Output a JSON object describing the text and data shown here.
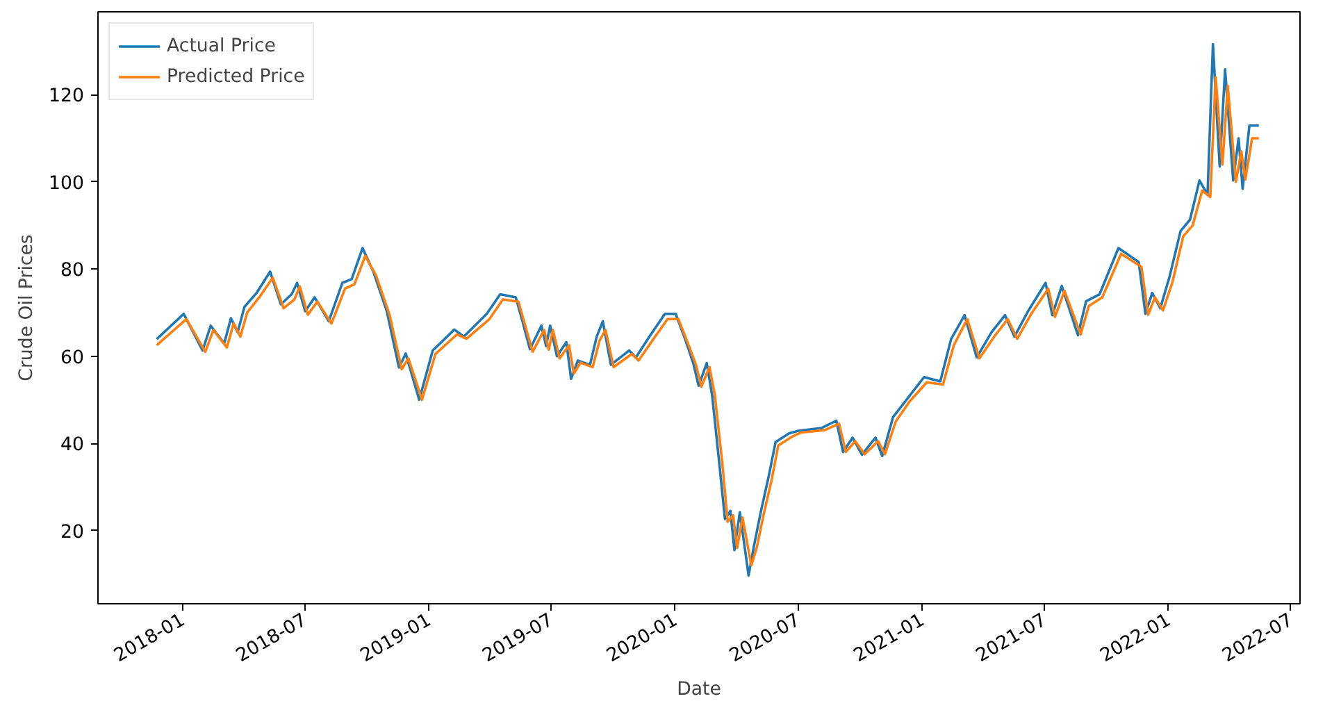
{
  "chart_data": {
    "type": "line",
    "xlabel": "Date",
    "ylabel": "Crude Oil Prices",
    "xlim": [
      "2017-08-29",
      "2022-07-15"
    ],
    "ylim": [
      3.2,
      139
    ],
    "xticks": [
      "2018-01",
      "2018-07",
      "2019-01",
      "2019-07",
      "2020-01",
      "2020-07",
      "2021-01",
      "2021-07",
      "2022-01",
      "2022-07"
    ],
    "yticks": [
      20,
      40,
      60,
      80,
      100,
      120
    ],
    "grid": false,
    "legend": "top left",
    "line_style": "solid",
    "series": [
      {
        "name": "Actual Price",
        "color": "#1f77b4",
        "x": [
          "2017-11-24",
          "2018-01-03",
          "2018-01-31",
          "2018-02-12",
          "2018-03-04",
          "2018-03-14",
          "2018-03-24",
          "2018-04-03",
          "2018-04-21",
          "2018-05-11",
          "2018-05-27",
          "2018-06-12",
          "2018-06-20",
          "2018-07-02",
          "2018-07-16",
          "2018-08-06",
          "2018-08-26",
          "2018-09-09",
          "2018-09-25",
          "2018-10-11",
          "2018-10-31",
          "2018-11-18",
          "2018-11-28",
          "2018-12-18",
          "2019-01-07",
          "2019-02-08",
          "2019-02-22",
          "2019-03-28",
          "2019-04-17",
          "2019-05-10",
          "2019-05-20",
          "2019-05-31",
          "2019-06-17",
          "2019-06-24",
          "2019-06-30",
          "2019-07-10",
          "2019-07-24",
          "2019-07-31",
          "2019-08-10",
          "2019-08-28",
          "2019-09-07",
          "2019-09-16",
          "2019-09-28",
          "2019-10-25",
          "2019-11-04",
          "2019-11-24",
          "2019-12-17",
          "2020-01-02",
          "2020-01-16",
          "2020-01-28",
          "2020-02-05",
          "2020-02-17",
          "2020-02-25",
          "2020-03-07",
          "2020-03-15",
          "2020-03-23",
          "2020-03-29",
          "2020-04-06",
          "2020-04-19",
          "2020-04-27",
          "2020-05-07",
          "2020-05-19",
          "2020-05-29",
          "2020-06-18",
          "2020-07-02",
          "2020-08-05",
          "2020-08-27",
          "2020-09-06",
          "2020-09-20",
          "2020-10-04",
          "2020-10-24",
          "2020-11-03",
          "2020-11-19",
          "2020-12-09",
          "2021-01-04",
          "2021-01-28",
          "2021-02-13",
          "2021-03-05",
          "2021-03-23",
          "2021-04-14",
          "2021-05-04",
          "2021-05-18",
          "2021-06-07",
          "2021-07-03",
          "2021-07-13",
          "2021-07-27",
          "2021-08-20",
          "2021-09-01",
          "2021-09-21",
          "2021-10-19",
          "2021-11-18",
          "2021-11-28",
          "2021-12-08",
          "2021-12-20",
          "2022-01-03",
          "2022-01-19",
          "2022-02-02",
          "2022-02-16",
          "2022-02-28",
          "2022-03-08",
          "2022-03-18",
          "2022-03-26",
          "2022-04-07",
          "2022-04-15",
          "2022-04-21",
          "2022-05-01",
          "2022-05-15"
        ],
        "values": [
          63.9,
          69.7,
          61.3,
          67,
          62.9,
          68.7,
          65.5,
          71.3,
          74.5,
          79.4,
          71.9,
          74.2,
          76.8,
          70.3,
          73.5,
          68,
          76.8,
          77.7,
          84.8,
          79.4,
          70.3,
          57.4,
          60.6,
          50,
          61.3,
          66.1,
          64.5,
          69.7,
          74.2,
          73.5,
          68,
          61.6,
          67,
          62.3,
          67,
          60,
          63.2,
          54.8,
          59,
          58,
          64.5,
          68,
          58,
          61.3,
          59.7,
          64.5,
          69.7,
          69.7,
          63.9,
          58.4,
          53.2,
          58.4,
          51,
          34.8,
          22.6,
          24.5,
          15.5,
          24.2,
          9.7,
          16.5,
          24.2,
          32.6,
          40.3,
          42.3,
          42.9,
          43.5,
          45.2,
          38,
          41.3,
          37.4,
          41.3,
          37.1,
          46,
          50,
          55.2,
          54.2,
          63.9,
          69.4,
          59.7,
          65.5,
          69.4,
          64.5,
          70.3,
          76.8,
          69.4,
          76.1,
          64.8,
          72.6,
          74.2,
          84.8,
          81.6,
          69.7,
          74.5,
          71,
          78.4,
          88.7,
          91.3,
          100.3,
          97.1,
          131.6,
          103.5,
          125.8,
          100.3,
          110,
          98.4,
          112.9,
          112.9
        ]
      },
      {
        "name": "Predicted Price",
        "color": "#ff7f0e",
        "x": [
          "2017-11-24",
          "2018-01-07",
          "2018-02-04",
          "2018-02-16",
          "2018-03-08",
          "2018-03-18",
          "2018-03-28",
          "2018-04-07",
          "2018-04-25",
          "2018-05-15",
          "2018-05-31",
          "2018-06-16",
          "2018-06-24",
          "2018-07-06",
          "2018-07-20",
          "2018-08-10",
          "2018-08-30",
          "2018-09-13",
          "2018-09-29",
          "2018-10-15",
          "2018-11-04",
          "2018-11-22",
          "2018-12-02",
          "2018-12-22",
          "2019-01-11",
          "2019-02-12",
          "2019-02-26",
          "2019-04-01",
          "2019-04-21",
          "2019-05-14",
          "2019-05-24",
          "2019-06-04",
          "2019-06-21",
          "2019-06-28",
          "2019-07-04",
          "2019-07-14",
          "2019-07-28",
          "2019-08-04",
          "2019-08-14",
          "2019-09-01",
          "2019-09-11",
          "2019-09-20",
          "2019-10-02",
          "2019-10-29",
          "2019-11-08",
          "2019-11-28",
          "2019-12-21",
          "2020-01-06",
          "2020-01-20",
          "2020-02-01",
          "2020-02-09",
          "2020-02-21",
          "2020-02-29",
          "2020-03-11",
          "2020-03-19",
          "2020-03-27",
          "2020-04-02",
          "2020-04-10",
          "2020-04-23",
          "2020-05-01",
          "2020-05-11",
          "2020-05-23",
          "2020-06-02",
          "2020-06-22",
          "2020-07-06",
          "2020-08-09",
          "2020-08-31",
          "2020-09-10",
          "2020-09-24",
          "2020-10-08",
          "2020-10-28",
          "2020-11-07",
          "2020-11-23",
          "2020-12-13",
          "2021-01-08",
          "2021-02-01",
          "2021-02-17",
          "2021-03-09",
          "2021-03-27",
          "2021-04-18",
          "2021-05-08",
          "2021-05-22",
          "2021-06-11",
          "2021-07-07",
          "2021-07-17",
          "2021-07-31",
          "2021-08-24",
          "2021-09-05",
          "2021-09-25",
          "2021-10-23",
          "2021-11-22",
          "2021-12-02",
          "2021-12-12",
          "2021-12-24",
          "2022-01-07",
          "2022-01-23",
          "2022-02-06",
          "2022-02-20",
          "2022-03-04",
          "2022-03-12",
          "2022-03-22",
          "2022-03-30",
          "2022-04-11",
          "2022-04-19",
          "2022-04-25",
          "2022-05-05",
          "2022-05-15"
        ],
        "values": [
          62.5,
          68.5,
          61,
          66,
          62,
          67.5,
          64.5,
          70,
          73.5,
          78,
          71,
          73,
          76,
          69.5,
          72.5,
          67.5,
          75.5,
          76.5,
          83,
          78.5,
          69.5,
          57,
          59.5,
          50,
          60.5,
          65,
          64,
          68.5,
          73,
          72.5,
          67,
          61,
          66,
          61.5,
          66,
          59.5,
          62.5,
          56,
          58.5,
          57.5,
          63.5,
          66,
          57.5,
          60.5,
          59,
          63.5,
          68.5,
          68.5,
          63,
          58,
          53,
          57.5,
          51,
          35.5,
          22,
          23.5,
          16,
          23,
          12,
          16,
          23.5,
          31.5,
          39.5,
          41.5,
          42.5,
          43,
          44.5,
          38,
          40.5,
          37.5,
          40.5,
          37.5,
          45,
          49.5,
          54,
          53.5,
          62.5,
          68.5,
          59.5,
          64.5,
          68.5,
          64,
          69.5,
          75.5,
          69,
          75,
          65,
          71.5,
          73.5,
          83.5,
          80.5,
          69.5,
          73.5,
          70.5,
          77,
          87.5,
          90,
          98,
          96.5,
          124,
          104,
          122,
          100,
          107,
          100.5,
          110,
          110
        ]
      }
    ]
  }
}
